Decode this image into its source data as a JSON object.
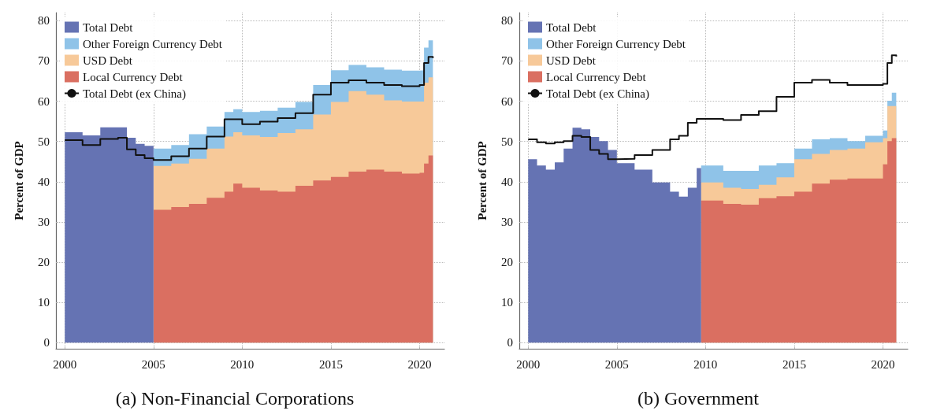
{
  "chart_data": [
    {
      "type": "area",
      "title": "(a) Non-Financial Corporations",
      "ylabel": "Percent of GDP",
      "stacked": true,
      "grid": true,
      "legend": "top left",
      "marker": "none",
      "xlim": [
        1999.5,
        2021.4
      ],
      "xticks": [
        2000,
        2005,
        2010,
        2015,
        2020
      ],
      "ylim": [
        -1.5,
        82
      ],
      "yticks": [
        0,
        10,
        20,
        30,
        40,
        50,
        60,
        70,
        80
      ],
      "x": [
        2000,
        2001,
        2002,
        2003,
        2003.5,
        2004,
        2004.5,
        2005,
        2006,
        2007,
        2008,
        2009,
        2009.5,
        2010,
        2011,
        2012,
        2013,
        2014,
        2015,
        2016,
        2017,
        2018,
        2019,
        2020,
        2020.25,
        2020.5,
        2020.75
      ],
      "series": [
        {
          "name": "Total Debt",
          "color": "#6573b3",
          "values": [
            52.3,
            51.5,
            53.5,
            53.5,
            50.9,
            49.4,
            48.9,
            0,
            null,
            null,
            null,
            null,
            null,
            null,
            null,
            null,
            null,
            null,
            null,
            null,
            null,
            null,
            null,
            null,
            null,
            null,
            null
          ]
        },
        {
          "name": "Local Currency Debt",
          "color": "#da6f61",
          "values": [
            null,
            null,
            null,
            null,
            null,
            null,
            null,
            33,
            33.7,
            34.5,
            36,
            37.5,
            39.5,
            38.5,
            37.8,
            37.5,
            39,
            40.3,
            41.2,
            42.5,
            43,
            42.5,
            42,
            42.2,
            44.5,
            46.5,
            47
          ]
        },
        {
          "name": "USD Debt",
          "color": "#f7c999",
          "values": [
            null,
            null,
            null,
            null,
            null,
            null,
            null,
            10.9,
            10.8,
            11.2,
            12.2,
            13.7,
            12.8,
            13,
            13.3,
            14.6,
            14,
            16.4,
            18.6,
            20,
            18.6,
            17.7,
            17.9,
            17.7,
            20.1,
            19.4,
            18.7
          ]
        },
        {
          "name": "Other Foreign Currency Debt",
          "color": "#8fc3e8",
          "values": [
            null,
            null,
            null,
            null,
            null,
            null,
            null,
            4.3,
            4.6,
            6.1,
            5.5,
            6.1,
            5.7,
            5.8,
            6.5,
            6.3,
            6.8,
            7.3,
            7.9,
            6.5,
            6.8,
            7.6,
            7.7,
            7.8,
            8.7,
            9.2,
            9.0
          ]
        },
        {
          "name": "Total Debt (ex China)",
          "type": "step",
          "color": "#111111",
          "values": [
            50.3,
            49.1,
            50.6,
            50.9,
            48,
            46.6,
            45.8,
            45.4,
            46.3,
            48.2,
            51.2,
            55.5,
            55.5,
            54.3,
            54.9,
            55.8,
            57,
            61.6,
            64.6,
            65.2,
            64.6,
            64,
            63.7,
            64,
            69.5,
            71,
            70.7
          ]
        }
      ]
    },
    {
      "type": "area",
      "title": "(b) Government",
      "ylabel": "Percent of GDP",
      "stacked": true,
      "grid": true,
      "legend": "top left",
      "marker": "none",
      "xlim": [
        1999.5,
        2021.4
      ],
      "xticks": [
        2000,
        2005,
        2010,
        2015,
        2020
      ],
      "ylim": [
        -1.5,
        82
      ],
      "yticks": [
        0,
        10,
        20,
        30,
        40,
        50,
        60,
        70,
        80
      ],
      "x": [
        2000,
        2000.5,
        2001,
        2001.5,
        2002,
        2002.5,
        2003,
        2003.5,
        2004,
        2004.5,
        2005,
        2006,
        2007,
        2008,
        2008.5,
        2009,
        2009.5,
        2009.75,
        2011,
        2012,
        2013,
        2014,
        2015,
        2016,
        2017,
        2018,
        2019,
        2020,
        2020.25,
        2020.5,
        2020.75
      ],
      "series": [
        {
          "name": "Total Debt",
          "color": "#6573b3",
          "values": [
            45.6,
            44,
            43,
            44.8,
            48.2,
            53.4,
            53,
            51.1,
            50.1,
            47.9,
            44.6,
            43,
            39.8,
            37.5,
            36.3,
            38.5,
            43.4,
            0,
            null,
            null,
            null,
            null,
            null,
            null,
            null,
            null,
            null,
            null,
            null,
            null,
            null
          ]
        },
        {
          "name": "Local Currency Debt",
          "color": "#da6f61",
          "values": [
            null,
            null,
            null,
            null,
            null,
            null,
            null,
            null,
            null,
            null,
            null,
            null,
            null,
            null,
            null,
            null,
            null,
            35.3,
            34.5,
            34.3,
            35.9,
            36.4,
            37.5,
            39.5,
            40.5,
            40.8,
            40.8,
            44.3,
            50.1,
            50.8,
            50.5
          ]
        },
        {
          "name": "USD Debt",
          "color": "#f7c999",
          "values": [
            null,
            null,
            null,
            null,
            null,
            null,
            null,
            null,
            null,
            null,
            null,
            null,
            null,
            null,
            null,
            null,
            null,
            4.5,
            4,
            3.9,
            3.3,
            4.7,
            8.1,
            7.4,
            7.4,
            7.4,
            9,
            6.5,
            8.7,
            8,
            8.3
          ]
        },
        {
          "name": "Other Foreign Currency Debt",
          "color": "#8fc3e8",
          "values": [
            null,
            null,
            null,
            null,
            null,
            null,
            null,
            null,
            null,
            null,
            null,
            null,
            null,
            null,
            null,
            null,
            null,
            4.2,
            4.2,
            4.5,
            4.8,
            3.5,
            2.6,
            3.6,
            2.9,
            1.9,
            1.6,
            1.9,
            1.3,
            3.3,
            3.2
          ]
        },
        {
          "name": "Total Debt (ex China)",
          "type": "step",
          "color": "#111111",
          "values": [
            50.5,
            49.8,
            49.5,
            49.8,
            50.1,
            51.4,
            51.1,
            47.9,
            46.9,
            45.6,
            45.7,
            46.6,
            47.9,
            50.5,
            51.4,
            54.6,
            55.6,
            55.6,
            55.3,
            56.6,
            57.5,
            61.1,
            64.6,
            65.3,
            64.6,
            64,
            64,
            64.3,
            69.5,
            71.4,
            71.1
          ]
        }
      ]
    }
  ]
}
